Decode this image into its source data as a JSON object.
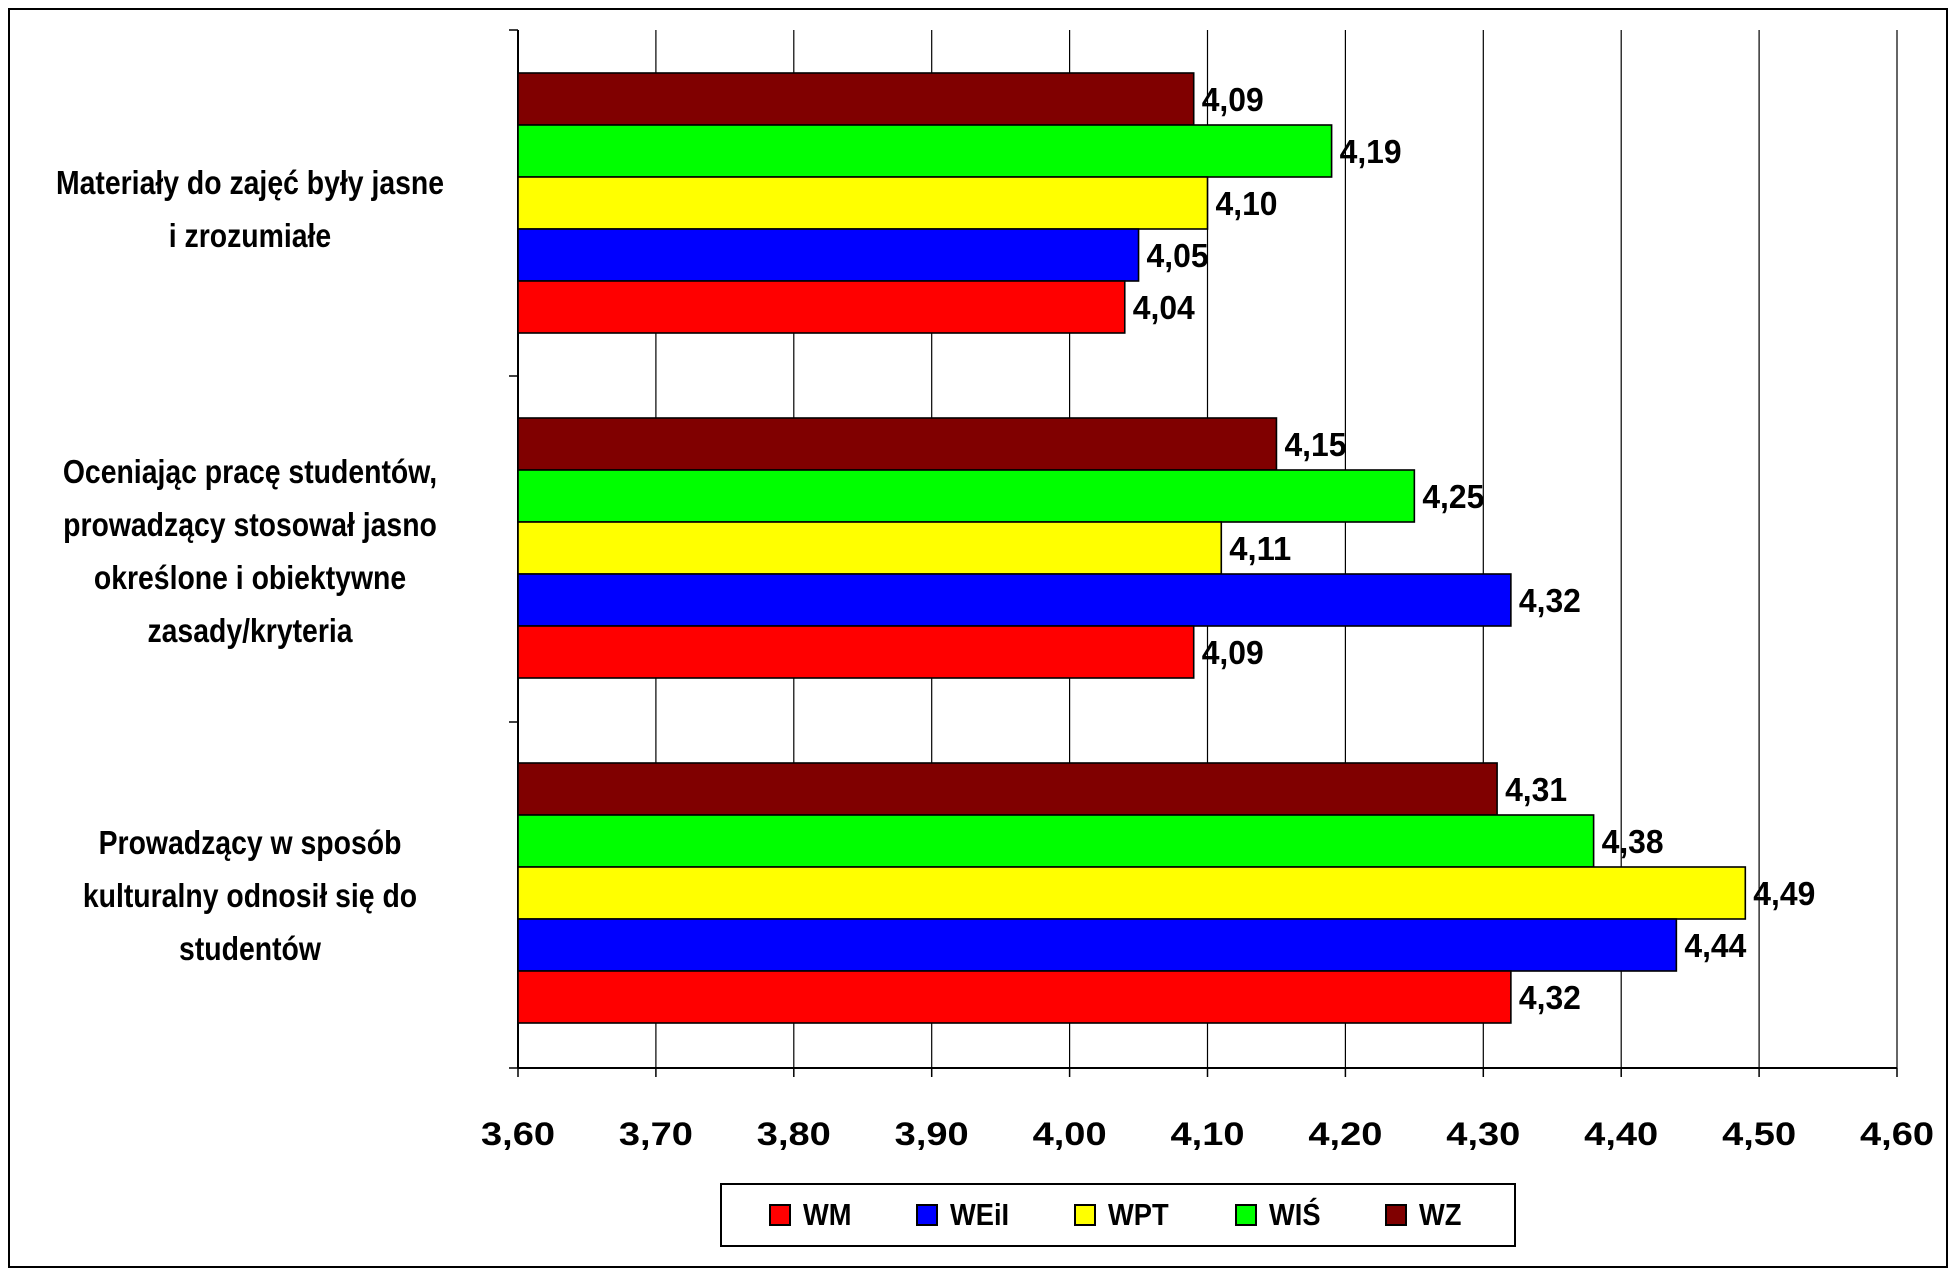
{
  "chart_data": {
    "type": "bar",
    "orientation": "horizontal",
    "categories": [
      "Materiały do zajęć były jasne i zrozumiałe",
      "Oceniając pracę studentów, prowadzący stosował jasno określone i obiektywne zasady/kryteria",
      "Prowadzący w sposób kulturalny odnosił się do studentów"
    ],
    "category_lines": [
      [
        "Materiały do zajęć były jasne",
        "i zrozumiałe"
      ],
      [
        "Oceniając pracę studentów,",
        "prowadzący stosował jasno",
        "określone i obiektywne",
        "zasady/kryteria"
      ],
      [
        "Prowadzący w sposób",
        "kulturalny odnosił się do",
        "studentów"
      ]
    ],
    "series": [
      {
        "name": "WM",
        "color": "#FF0000",
        "values": [
          4.04,
          4.09,
          4.32
        ],
        "labels": [
          "4,04",
          "4,09",
          "4,32"
        ]
      },
      {
        "name": "WEiI",
        "color": "#0000FF",
        "values": [
          4.05,
          4.32,
          4.44
        ],
        "labels": [
          "4,05",
          "4,32",
          "4,44"
        ]
      },
      {
        "name": "WPT",
        "color": "#FFFF00",
        "values": [
          4.1,
          4.11,
          4.49
        ],
        "labels": [
          "4,10",
          "4,11",
          "4,49"
        ]
      },
      {
        "name": "WIŚ",
        "color": "#00FF00",
        "values": [
          4.19,
          4.25,
          4.38
        ],
        "labels": [
          "4,19",
          "4,25",
          "4,38"
        ]
      },
      {
        "name": "WZ",
        "color": "#800000",
        "values": [
          4.09,
          4.15,
          4.31
        ],
        "labels": [
          "4,09",
          "4,15",
          "4,31"
        ]
      }
    ],
    "xlim": [
      3.6,
      4.6
    ],
    "x_ticks": [
      3.6,
      3.7,
      3.8,
      3.9,
      4.0,
      4.1,
      4.2,
      4.3,
      4.4,
      4.5,
      4.6
    ],
    "x_tick_labels": [
      "3,60",
      "3,70",
      "3,80",
      "3,90",
      "4,00",
      "4,10",
      "4,20",
      "4,30",
      "4,40",
      "4,50",
      "4,60"
    ],
    "grid": "vertical",
    "legend_position": "bottom",
    "title": "",
    "xlabel": "",
    "ylabel": ""
  },
  "legend": {
    "items": [
      {
        "label": "WM",
        "color": "#FF0000"
      },
      {
        "label": "WEiI",
        "color": "#0000FF"
      },
      {
        "label": "WPT",
        "color": "#FFFF00"
      },
      {
        "label": "WIŚ",
        "color": "#00FF00"
      },
      {
        "label": "WZ",
        "color": "#800000"
      }
    ]
  }
}
